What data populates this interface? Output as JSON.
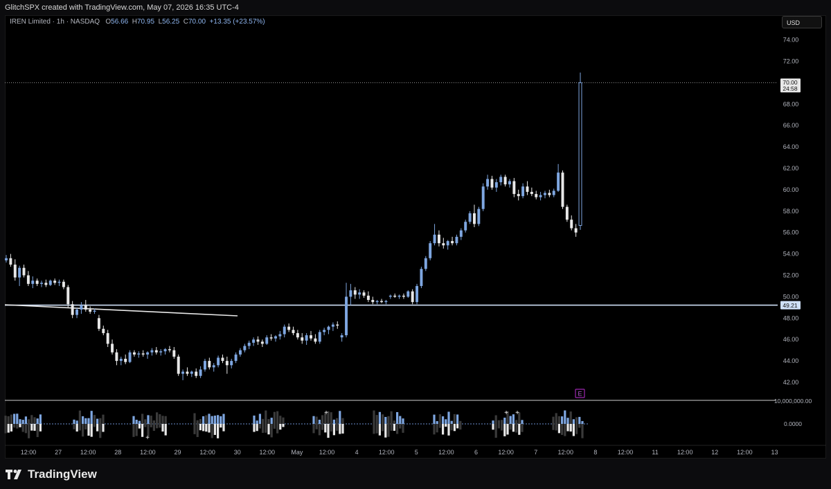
{
  "header": {
    "attribution": "GlitchSPX created with TradingView.com, May 07, 2026 16:35 UTC-4"
  },
  "legend": {
    "symbol": "IREN Limited · 1h · NASDAQ",
    "open_label": "O",
    "open": "56.66",
    "high_label": "H",
    "high": "70.95",
    "low_label": "L",
    "low": "56.25",
    "close_label": "C",
    "close": "70.00",
    "change": "+13.35 (+23.57%)"
  },
  "currency_button": "USD",
  "price_axis": {
    "ticks": [
      "74.00",
      "72.00",
      "70.00",
      "68.00",
      "66.00",
      "64.00",
      "62.00",
      "60.00",
      "58.00",
      "56.00",
      "54.00",
      "52.00",
      "50.00",
      "48.00",
      "46.00",
      "44.00",
      "42.00"
    ],
    "last_price": "70.00",
    "countdown": "24:58",
    "level_label": "49.21",
    "indicator_max": "10,000,000.00",
    "indicator_zero": "0.0000"
  },
  "time_axis": {
    "labels": [
      "12:00",
      "27",
      "12:00",
      "28",
      "12:00",
      "29",
      "12:00",
      "30",
      "12:00",
      "May",
      "12:00",
      "4",
      "12:00",
      "5",
      "12:00",
      "6",
      "12:00",
      "7",
      "12:00",
      "8",
      "12:00",
      "11",
      "12:00",
      "12",
      "12:00",
      "13"
    ]
  },
  "earnings_marker": "E",
  "brand": "TradingView",
  "colors": {
    "up": "#7ea6e0",
    "down": "#e8e8e8",
    "accent": "#8db4ee",
    "earnings": "#9c27b0"
  },
  "chart_data": {
    "type": "candlestick",
    "title": "IREN Limited · 1h · NASDAQ",
    "ylim": [
      41,
      75
    ],
    "horizontal_level": 49.21,
    "last_price": 70.0,
    "candles": [
      [
        53.4,
        53.9,
        53.2,
        53.6
      ],
      [
        53.6,
        54.0,
        52.8,
        53.0
      ],
      [
        53.0,
        53.5,
        51.5,
        51.8
      ],
      [
        51.8,
        52.9,
        51.0,
        52.7
      ],
      [
        52.7,
        53.0,
        51.8,
        52.0
      ],
      [
        52.0,
        52.4,
        51.0,
        51.2
      ],
      [
        51.2,
        51.9,
        50.8,
        51.5
      ],
      [
        51.5,
        51.7,
        51.0,
        51.2
      ],
      [
        51.2,
        51.5,
        50.9,
        51.3
      ],
      [
        51.3,
        51.6,
        50.9,
        51.1
      ],
      [
        51.1,
        51.6,
        51.0,
        51.5
      ],
      [
        51.5,
        51.7,
        51.1,
        51.3
      ],
      [
        51.3,
        51.6,
        51.0,
        51.4
      ],
      [
        51.4,
        51.6,
        50.7,
        50.9
      ],
      [
        50.9,
        51.1,
        49.0,
        49.3
      ],
      [
        49.3,
        49.6,
        48.0,
        48.3
      ],
      [
        48.3,
        49.0,
        48.0,
        48.8
      ],
      [
        48.8,
        49.5,
        48.4,
        49.2
      ],
      [
        49.2,
        49.7,
        48.6,
        48.8
      ],
      [
        48.8,
        49.1,
        48.4,
        48.6
      ],
      [
        48.6,
        48.9,
        48.4,
        48.7
      ],
      [
        48.0,
        48.3,
        46.8,
        47.0
      ],
      [
        47.0,
        47.3,
        46.4,
        46.6
      ],
      [
        46.6,
        46.9,
        45.3,
        45.6
      ],
      [
        45.6,
        46.0,
        44.6,
        44.8
      ],
      [
        44.8,
        45.1,
        43.6,
        44.0
      ],
      [
        44.0,
        44.4,
        43.6,
        44.2
      ],
      [
        44.2,
        44.6,
        43.7,
        43.9
      ],
      [
        43.9,
        45.0,
        43.8,
        44.8
      ],
      [
        44.8,
        45.0,
        44.4,
        44.6
      ],
      [
        44.6,
        44.9,
        44.3,
        44.7
      ],
      [
        44.7,
        45.0,
        44.4,
        44.6
      ],
      [
        44.6,
        44.9,
        44.2,
        44.8
      ],
      [
        44.8,
        45.2,
        44.5,
        45.0
      ],
      [
        45.0,
        45.3,
        44.6,
        44.8
      ],
      [
        44.8,
        45.1,
        44.5,
        44.9
      ],
      [
        44.9,
        45.2,
        44.6,
        45.1
      ],
      [
        45.1,
        45.4,
        44.8,
        45.0
      ],
      [
        45.0,
        45.3,
        44.2,
        44.4
      ],
      [
        44.4,
        44.6,
        42.6,
        42.8
      ],
      [
        42.8,
        43.2,
        42.2,
        43.0
      ],
      [
        43.0,
        43.4,
        42.6,
        42.8
      ],
      [
        42.8,
        43.1,
        42.5,
        43.0
      ],
      [
        43.0,
        43.3,
        42.4,
        42.6
      ],
      [
        42.6,
        43.5,
        42.4,
        43.2
      ],
      [
        43.2,
        44.2,
        43.0,
        44.0
      ],
      [
        44.0,
        44.3,
        43.2,
        43.4
      ],
      [
        43.4,
        43.8,
        43.0,
        43.6
      ],
      [
        43.6,
        44.5,
        43.4,
        44.3
      ],
      [
        44.3,
        44.6,
        43.8,
        44.0
      ],
      [
        44.0,
        44.4,
        42.8,
        43.6
      ],
      [
        43.6,
        44.2,
        43.3,
        44.0
      ],
      [
        44.0,
        44.8,
        43.8,
        44.6
      ],
      [
        44.6,
        45.2,
        44.4,
        45.0
      ],
      [
        45.0,
        45.6,
        44.8,
        45.4
      ],
      [
        45.4,
        45.9,
        45.1,
        45.7
      ],
      [
        45.7,
        46.2,
        45.4,
        46.0
      ],
      [
        46.0,
        46.3,
        45.5,
        45.8
      ],
      [
        45.8,
        46.0,
        45.3,
        45.6
      ],
      [
        45.6,
        46.4,
        45.5,
        46.2
      ],
      [
        46.2,
        46.5,
        45.9,
        46.1
      ],
      [
        46.1,
        46.4,
        45.8,
        46.3
      ],
      [
        46.3,
        46.8,
        46.0,
        46.5
      ],
      [
        46.5,
        47.4,
        46.2,
        47.2
      ],
      [
        47.2,
        47.5,
        46.7,
        46.9
      ],
      [
        46.9,
        47.2,
        46.4,
        46.6
      ],
      [
        46.6,
        46.9,
        46.0,
        46.2
      ],
      [
        46.2,
        46.6,
        45.6,
        45.9
      ],
      [
        45.9,
        46.6,
        45.5,
        46.4
      ],
      [
        46.4,
        46.8,
        45.9,
        46.1
      ],
      [
        46.1,
        46.5,
        45.6,
        45.8
      ],
      [
        45.8,
        46.9,
        45.6,
        46.7
      ],
      [
        46.7,
        47.1,
        46.4,
        46.9
      ],
      [
        46.9,
        47.3,
        46.5,
        47.2
      ],
      [
        47.2,
        47.6,
        46.8,
        47.4
      ],
      [
        47.4,
        47.7,
        47.0,
        47.3
      ],
      [
        46.2,
        46.6,
        45.8,
        46.4
      ],
      [
        46.4,
        51.3,
        46.2,
        50.0
      ],
      [
        50.0,
        51.2,
        49.2,
        50.6
      ],
      [
        50.6,
        50.9,
        49.8,
        50.2
      ],
      [
        50.2,
        50.7,
        49.8,
        50.4
      ],
      [
        50.4,
        50.6,
        49.9,
        50.1
      ],
      [
        50.1,
        50.5,
        49.5,
        49.7
      ],
      [
        49.7,
        50.0,
        49.3,
        49.5
      ],
      [
        49.5,
        49.7,
        49.3,
        49.6
      ],
      [
        49.6,
        49.8,
        49.4,
        49.5
      ],
      [
        49.5,
        49.7,
        49.3,
        49.6
      ],
      [
        50.0,
        50.2,
        49.8,
        50.1
      ],
      [
        50.1,
        50.3,
        49.9,
        50.0
      ],
      [
        50.0,
        50.2,
        49.8,
        50.1
      ],
      [
        50.1,
        50.3,
        49.8,
        50.0
      ],
      [
        50.0,
        50.6,
        49.9,
        50.5
      ],
      [
        50.5,
        50.7,
        49.3,
        49.5
      ],
      [
        49.5,
        51.2,
        49.3,
        51.0
      ],
      [
        51.0,
        52.8,
        50.8,
        52.6
      ],
      [
        52.6,
        53.8,
        52.4,
        53.6
      ],
      [
        53.6,
        55.2,
        53.4,
        55.0
      ],
      [
        55.0,
        56.8,
        54.8,
        55.8
      ],
      [
        55.8,
        56.2,
        54.7,
        55.0
      ],
      [
        55.0,
        55.5,
        54.5,
        54.8
      ],
      [
        54.8,
        55.3,
        54.4,
        55.2
      ],
      [
        55.2,
        55.6,
        54.8,
        55.0
      ],
      [
        55.0,
        55.8,
        54.8,
        55.6
      ],
      [
        55.6,
        56.4,
        55.3,
        56.2
      ],
      [
        56.2,
        57.2,
        56.0,
        57.0
      ],
      [
        57.0,
        58.0,
        56.8,
        57.8
      ],
      [
        57.8,
        58.6,
        56.5,
        56.8
      ],
      [
        56.8,
        58.4,
        56.6,
        58.2
      ],
      [
        58.2,
        60.6,
        58.0,
        60.3
      ],
      [
        60.3,
        61.4,
        60.0,
        61.0
      ],
      [
        61.0,
        61.3,
        60.0,
        60.2
      ],
      [
        60.2,
        61.0,
        59.8,
        60.7
      ],
      [
        60.7,
        61.4,
        60.4,
        61.2
      ],
      [
        61.2,
        61.4,
        60.3,
        60.5
      ],
      [
        60.5,
        61.0,
        60.2,
        60.8
      ],
      [
        60.8,
        61.1,
        59.3,
        59.6
      ],
      [
        59.6,
        60.0,
        59.0,
        59.4
      ],
      [
        59.4,
        60.6,
        59.2,
        60.3
      ],
      [
        60.3,
        60.8,
        59.5,
        59.8
      ],
      [
        59.8,
        60.2,
        59.4,
        59.6
      ],
      [
        59.6,
        59.9,
        59.1,
        59.3
      ],
      [
        59.3,
        59.8,
        59.0,
        59.5
      ],
      [
        59.5,
        59.9,
        59.2,
        59.7
      ],
      [
        59.7,
        60.0,
        59.3,
        59.5
      ],
      [
        59.5,
        60.1,
        59.3,
        59.9
      ],
      [
        59.9,
        62.4,
        59.8,
        61.6
      ],
      [
        61.6,
        61.8,
        58.2,
        58.4
      ],
      [
        58.4,
        58.6,
        57.0,
        57.2
      ],
      [
        57.2,
        57.6,
        56.2,
        56.4
      ],
      [
        56.4,
        56.8,
        55.6,
        56.0
      ],
      [
        56.66,
        70.95,
        56.25,
        70.0
      ]
    ]
  }
}
